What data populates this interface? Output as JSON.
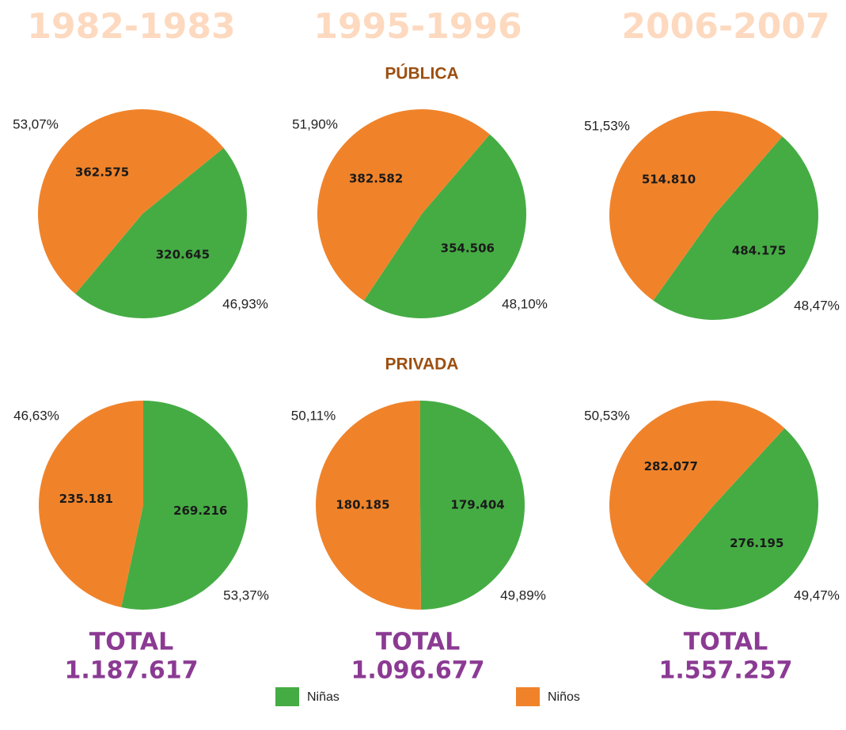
{
  "columns": [
    {
      "year": "1982-1983",
      "total_title": "TOTAL",
      "total": "1.187.617"
    },
    {
      "year": "1995-1996",
      "total_title": "TOTAL",
      "total": "1.096.677"
    },
    {
      "year": "2006-2007",
      "total_title": "TOTAL",
      "total": "1.557.257"
    }
  ],
  "sections": [
    "PÚBLICA",
    "PRIVADA"
  ],
  "chart_data": [
    {
      "type": "pie",
      "categories": [
        "Niñas",
        "Niños"
      ],
      "colors": [
        "#45ac44",
        "#f0832a"
      ],
      "values": [
        320645,
        362575
      ],
      "value_labels": [
        "320.645",
        "362.575"
      ],
      "shares": [
        46.93,
        53.07
      ],
      "share_labels": [
        "46,93%",
        "53,07%"
      ]
    },
    {
      "type": "pie",
      "categories": [
        "Niñas",
        "Niños"
      ],
      "colors": [
        "#45ac44",
        "#f0832a"
      ],
      "values": [
        354506,
        382582
      ],
      "value_labels": [
        "354.506",
        "382.582"
      ],
      "shares": [
        48.1,
        51.9
      ],
      "share_labels": [
        "48,10%",
        "51,90%"
      ]
    },
    {
      "type": "pie",
      "categories": [
        "Niñas",
        "Niños"
      ],
      "colors": [
        "#45ac44",
        "#f0832a"
      ],
      "values": [
        484175,
        514810
      ],
      "value_labels": [
        "484.175",
        "514.810"
      ],
      "shares": [
        48.47,
        51.53
      ],
      "share_labels": [
        "48,47%",
        "51,53%"
      ]
    },
    {
      "type": "pie",
      "categories": [
        "Niñas",
        "Niños"
      ],
      "colors": [
        "#45ac44",
        "#f0832a"
      ],
      "values": [
        269216,
        235181
      ],
      "value_labels": [
        "269.216",
        "235.181"
      ],
      "shares": [
        53.37,
        46.63
      ],
      "share_labels": [
        "53,37%",
        "46,63%"
      ]
    },
    {
      "type": "pie",
      "categories": [
        "Niñas",
        "Niños"
      ],
      "colors": [
        "#45ac44",
        "#f0832a"
      ],
      "values": [
        179404,
        180185
      ],
      "value_labels": [
        "179.404",
        "180.185"
      ],
      "shares": [
        49.89,
        50.11
      ],
      "share_labels": [
        "49,89%",
        "50,11%"
      ]
    },
    {
      "type": "pie",
      "categories": [
        "Niñas",
        "Niños"
      ],
      "colors": [
        "#45ac44",
        "#f0832a"
      ],
      "values": [
        276195,
        282077
      ],
      "value_labels": [
        "276.195",
        "282.077"
      ],
      "shares": [
        49.47,
        50.53
      ],
      "share_labels": [
        "49,47%",
        "50,53%"
      ]
    }
  ]
}
